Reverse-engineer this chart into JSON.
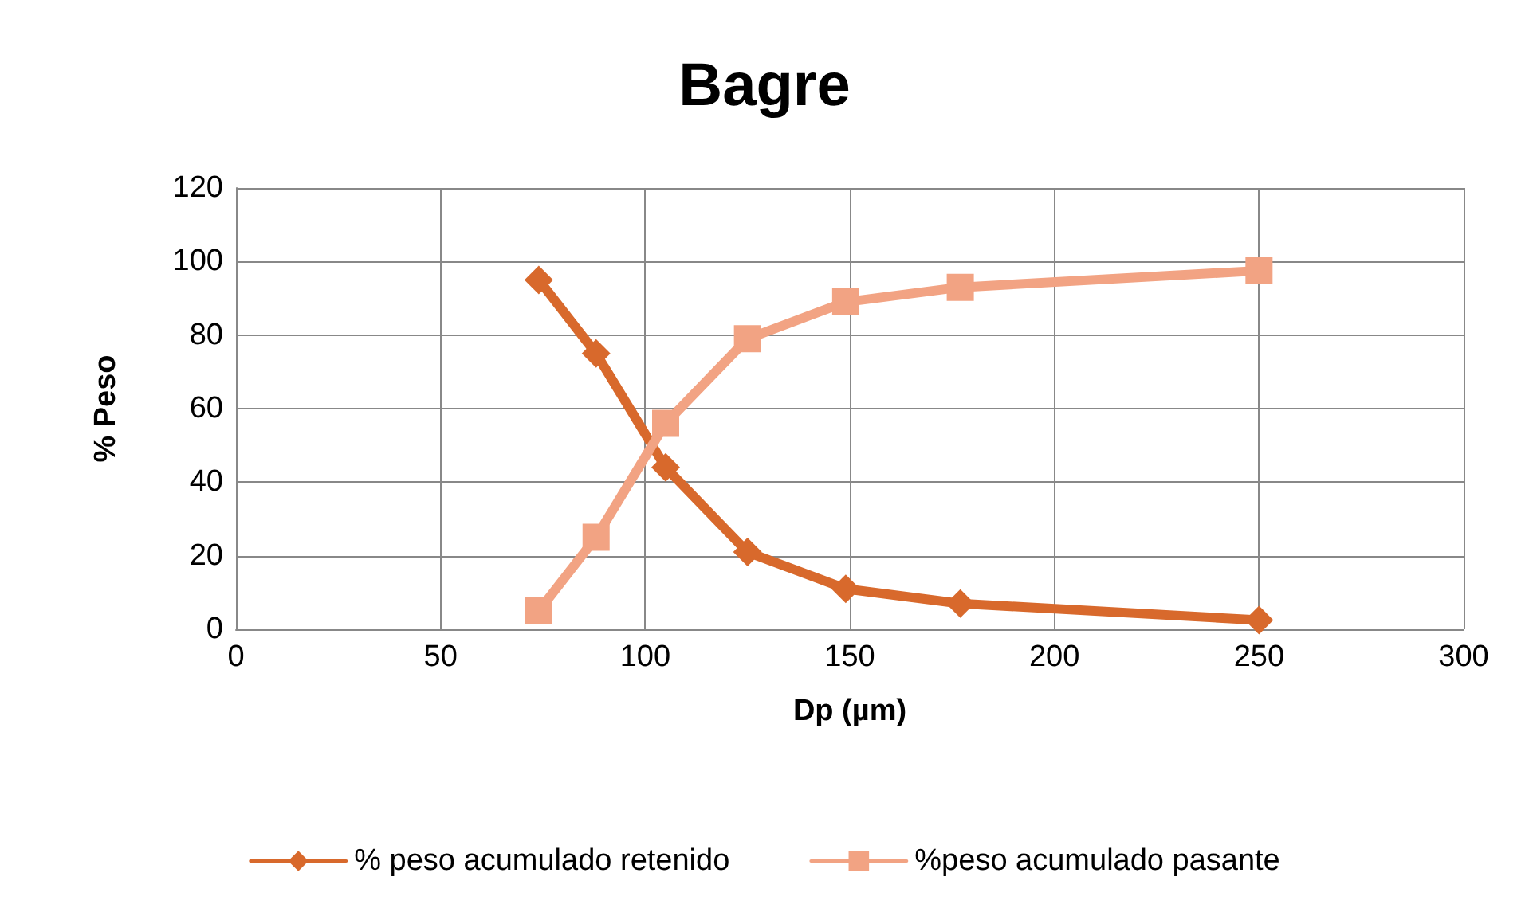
{
  "chart_data": {
    "type": "line",
    "title": "Bagre",
    "xlabel": "Dp (µm)",
    "ylabel": "% Peso",
    "x": [
      74,
      88,
      105,
      125,
      149,
      177,
      250
    ],
    "series": [
      {
        "name": "% peso acumulado retenido",
        "color": "#d8692c",
        "marker": "diamond",
        "values": [
          95,
          75,
          44,
          21,
          11,
          7,
          2.5
        ]
      },
      {
        "name": "%peso acumulado pasante",
        "color": "#f2a383",
        "marker": "square",
        "values": [
          5,
          25,
          56,
          79,
          89,
          93,
          97.5
        ]
      }
    ],
    "xlim": [
      0,
      300
    ],
    "xticks": [
      0,
      50,
      100,
      150,
      200,
      250,
      300
    ],
    "ylim": [
      0,
      120
    ],
    "yticks": [
      0,
      20,
      40,
      60,
      80,
      100,
      120
    ],
    "grid": true,
    "legend": "bottom",
    "line_style": "solid"
  }
}
